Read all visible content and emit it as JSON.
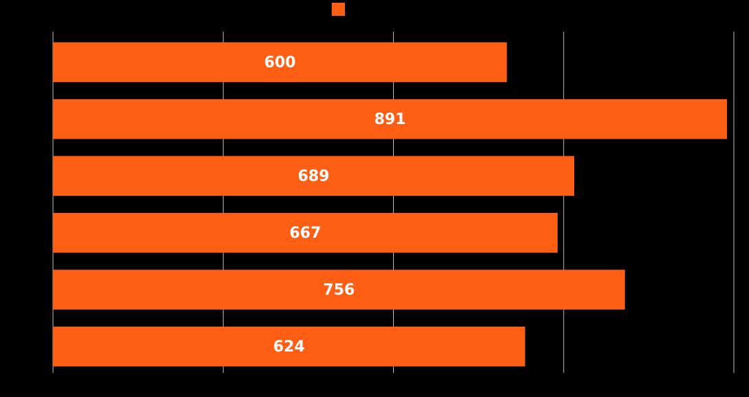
{
  "chart_data": {
    "type": "hbar",
    "categories": [
      null,
      null,
      null,
      null,
      null,
      null
    ],
    "values": [
      600,
      891,
      689,
      667,
      756,
      624
    ],
    "color": "#ff5f15",
    "xlim": [
      0,
      900
    ],
    "xticks": [
      0,
      225,
      450,
      675,
      900
    ],
    "grid": true,
    "legend": "top"
  }
}
